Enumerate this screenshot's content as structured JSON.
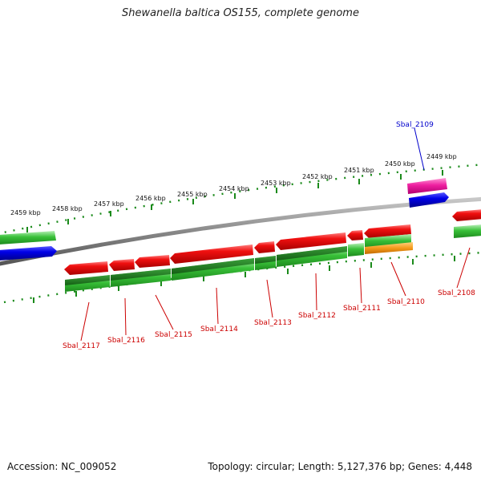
{
  "title": "Shewanella baltica OS155, complete genome",
  "footer": {
    "accession": "Accession: NC_009052",
    "summary": "Topology: circular; Length: 5,127,376 bp; Genes: 4,448"
  },
  "colors": {
    "forward_cds": "#e60000",
    "rna_green": "#2db82d",
    "blue_feature": "#0000dd",
    "pink_feature": "#ee1fa0",
    "orange_feature": "#f59a1a",
    "backbone": "#888888",
    "tick": "#1a8a1a",
    "gene_label": "#cc0000",
    "callout_blue": "#0000cc"
  },
  "scale_labels": [
    "2459 kbp",
    "2458 kbp",
    "2457 kbp",
    "2456 kbp",
    "2455 kbp",
    "2454 kbp",
    "2453 kbp",
    "2452 kbp",
    "2451 kbp",
    "2450 kbp",
    "2449 kbp"
  ],
  "gene_labels": [
    "Sbal_2117",
    "Sbal_2116",
    "Sbal_2115",
    "Sbal_2114",
    "Sbal_2113",
    "Sbal_2112",
    "Sbal_2111",
    "Sbal_2110",
    "Sbal_2108"
  ],
  "callout_label": "Sbal_2109"
}
